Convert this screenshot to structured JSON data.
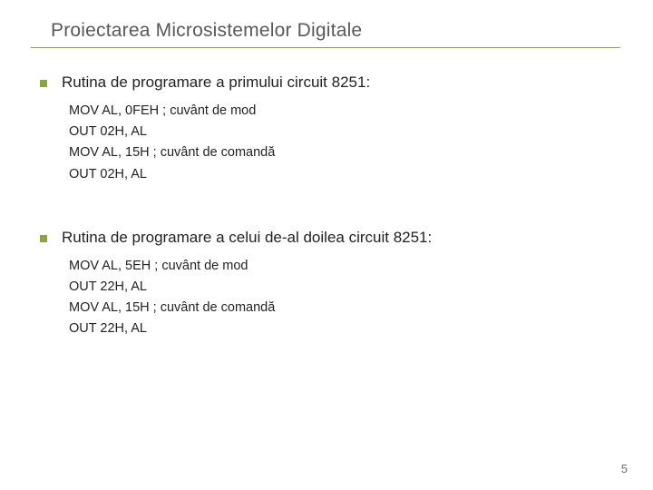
{
  "title": "Proiectarea Microsistemelor Digitale",
  "accent_color": "#8aa43e",
  "title_color": "#595959",
  "text_color": "#222222",
  "background_color": "#ffffff",
  "page_number": "5",
  "sections": [
    {
      "heading": "Rutina de programare a primului circuit 8251:",
      "lines": [
        "MOV AL, 0FEH ; cuvânt de mod",
        "OUT 02H, AL",
        "MOV AL, 15H ; cuvânt de comandă",
        "OUT 02H, AL"
      ]
    },
    {
      "heading": "Rutina de programare a celui de-al doilea circuit 8251:",
      "lines": [
        "MOV AL, 5EH ; cuvânt de mod",
        "OUT 22H, AL",
        "MOV AL, 15H ; cuvânt de comandă",
        "OUT 22H, AL"
      ]
    }
  ]
}
